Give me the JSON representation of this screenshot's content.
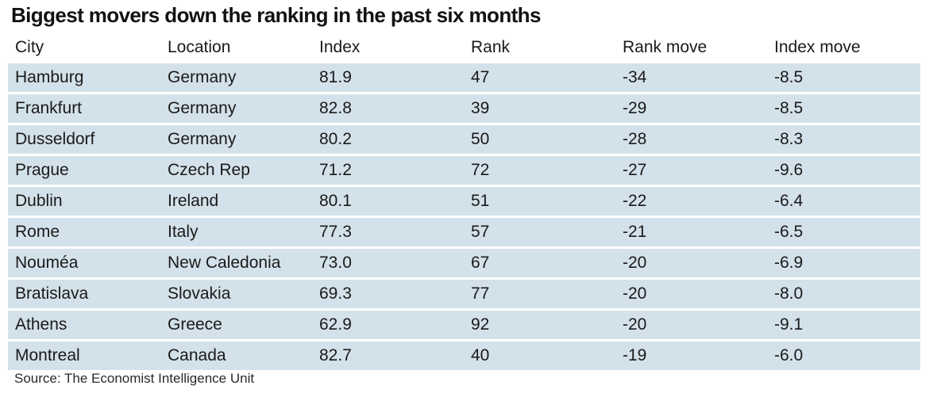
{
  "title": "Biggest movers down the ranking in the past six months",
  "columns": [
    "City",
    "Location",
    "Index",
    "Rank",
    "Rank move",
    "Index move"
  ],
  "rows": [
    [
      "Hamburg",
      "Germany",
      "81.9",
      "47",
      "-34",
      "-8.5"
    ],
    [
      "Frankfurt",
      "Germany",
      "82.8",
      "39",
      "-29",
      "-8.5"
    ],
    [
      "Dusseldorf",
      "Germany",
      "80.2",
      "50",
      "-28",
      "-8.3"
    ],
    [
      "Prague",
      "Czech Rep",
      "71.2",
      "72",
      "-27",
      "-9.6"
    ],
    [
      "Dublin",
      "Ireland",
      "80.1",
      "51",
      "-22",
      "-6.4"
    ],
    [
      "Rome",
      "Italy",
      "77.3",
      "57",
      "-21",
      "-6.5"
    ],
    [
      "Nouméa",
      "New Caledonia",
      "73.0",
      "67",
      "-20",
      "-6.9"
    ],
    [
      "Bratislava",
      "Slovakia",
      "69.3",
      "77",
      "-20",
      "-8.0"
    ],
    [
      "Athens",
      "Greece",
      "62.9",
      "92",
      "-20",
      "-9.1"
    ],
    [
      "Montreal",
      "Canada",
      "82.7",
      "40",
      "-19",
      "-6.0"
    ]
  ],
  "source": "Source: The Economist Intelligence Unit",
  "colors": {
    "row_background": "#d3e1ea",
    "text": "#1a1a1a"
  }
}
